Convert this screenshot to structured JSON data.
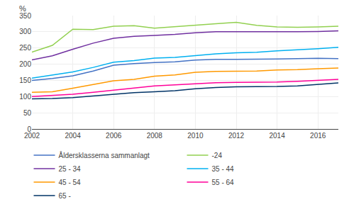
{
  "chart_data": {
    "type": "line",
    "ylabel": "%",
    "x": [
      2002,
      2003,
      2004,
      2005,
      2006,
      2007,
      2008,
      2009,
      2010,
      2011,
      2012,
      2013,
      2014,
      2015,
      2016,
      2017
    ],
    "series": [
      {
        "name": "Åldersklasserna sammanlagt",
        "color": "#4472C4",
        "values": [
          150,
          156,
          164,
          179,
          197,
          202,
          205,
          207,
          213,
          215,
          215,
          215,
          216,
          217,
          218,
          217
        ]
      },
      {
        "name": "-24",
        "color": "#92D050",
        "values": [
          237,
          258,
          308,
          307,
          317,
          319,
          311,
          316,
          321,
          325,
          329,
          320,
          315,
          314,
          315,
          317
        ]
      },
      {
        "name": "25 - 34",
        "color": "#7030A0",
        "values": [
          213,
          226,
          246,
          265,
          280,
          286,
          289,
          292,
          297,
          300,
          300,
          300,
          299,
          300,
          301,
          303
        ]
      },
      {
        "name": "35 - 44",
        "color": "#00B0F0",
        "values": [
          157,
          166,
          176,
          190,
          206,
          211,
          219,
          221,
          227,
          232,
          235,
          237,
          241,
          244,
          248,
          252
        ]
      },
      {
        "name": "45 - 54",
        "color": "#FF9900",
        "values": [
          113,
          115,
          126,
          138,
          149,
          153,
          163,
          167,
          175,
          178,
          178,
          179,
          182,
          183,
          186,
          188
        ]
      },
      {
        "name": "55 - 64",
        "color": "#FF0099",
        "values": [
          100,
          104,
          107,
          113,
          120,
          126,
          133,
          136,
          140,
          143,
          144,
          144,
          145,
          147,
          150,
          153
        ]
      },
      {
        "name": "65 -",
        "color": "#003366",
        "values": [
          93,
          94,
          97,
          102,
          108,
          112,
          115,
          118,
          124,
          128,
          130,
          130,
          131,
          133,
          137,
          142
        ]
      }
    ],
    "xlim": [
      2002,
      2017
    ],
    "xticks": [
      2002,
      2004,
      2006,
      2008,
      2010,
      2012,
      2014,
      2016
    ],
    "ylim": [
      0,
      350
    ],
    "yticks": [
      0,
      50,
      100,
      150,
      200,
      250,
      300,
      350
    ],
    "grid": true,
    "legend": "bottom"
  }
}
